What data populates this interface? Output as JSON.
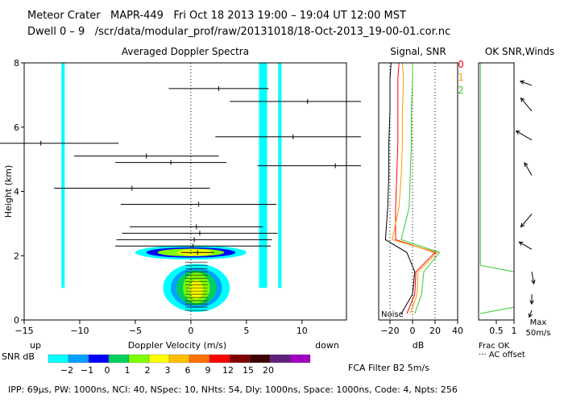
{
  "header": {
    "site": "Meteor Crater",
    "radar": "MAPR-449",
    "datetime": "Fri Oct 18 2013 19:00 – 19:04 UT 12:00 MST",
    "dwell": "Dwell   0 –   9",
    "path": "/scr/data/modular_prof/raw/20131018/18-Oct-2013_19-00-01.cor.nc"
  },
  "panels": {
    "spectra_title": "Averaged Doppler Spectra",
    "signal_title": "Signal, SNR",
    "ok_title": "OK SNR,Winds"
  },
  "legend_modes": [
    "0",
    "1",
    "2"
  ],
  "colors": {
    "mode0": "#ff0000",
    "mode1": "#ff9900",
    "mode2": "#33cc33",
    "ground_clutter": "#00ffff"
  },
  "colorbar": {
    "label": "SNR dB",
    "ticks": [
      "-2",
      "-1",
      "0",
      "1",
      "2",
      "3",
      "6",
      "9",
      "12",
      "15",
      "20"
    ],
    "colors": [
      "#00ffff",
      "#00a0ff",
      "#0000ff",
      "#00d060",
      "#80ff00",
      "#ffff00",
      "#ffc000",
      "#ff7000",
      "#ff0000",
      "#800000",
      "#400000",
      "#602080",
      "#a000c0"
    ]
  },
  "annotations": {
    "up": "up",
    "down": "down",
    "noise": "Noise",
    "frac_ok": "Frac OK",
    "ac_offset": "··· AC offset",
    "max": "Max",
    "max_value": "50m/s",
    "filter": "FCA Filter B2   5m/s"
  },
  "footer": {
    "text": "IPP: 69μs,  PW: 1000ns,  NCI: 40,  NSpec: 10, NHts: 54,  Dly: 1000ns,  Space: 1000ns,  Code: 4,  Npts: 256"
  },
  "chart_data": [
    {
      "type": "scatter",
      "name": "averaged-doppler-spectra",
      "title": "Averaged Doppler Spectra",
      "xlabel": "Doppler Velocity (m/s)",
      "ylabel": "Height (km)",
      "xlim": [
        -15,
        14
      ],
      "ylim": [
        0,
        8
      ],
      "xticks": [
        -15,
        -10,
        -5,
        0,
        5,
        10
      ],
      "yticks": [
        0,
        2,
        4,
        6,
        8
      ],
      "ground_clutter_bands": [
        {
          "x": -11.5,
          "from": 1.0,
          "to": 8.0
        },
        {
          "x": 6.5,
          "from": 1.0,
          "to": 8.0
        },
        {
          "x": 8.0,
          "from": 1.0,
          "to": 8.0
        }
      ],
      "velocity_estimates": [
        {
          "height": 7.2,
          "v": 2.5,
          "err": 4.5
        },
        {
          "height": 6.8,
          "v": 10.5,
          "err": 7.0
        },
        {
          "height": 5.7,
          "v": 9.2,
          "err": 7.0
        },
        {
          "height": 5.5,
          "v": -13.5,
          "err": 7.0
        },
        {
          "height": 5.1,
          "v": -4.0,
          "err": 6.5
        },
        {
          "height": 4.9,
          "v": -1.8,
          "err": 5.0
        },
        {
          "height": 4.8,
          "v": 13.0,
          "err": 7.0
        },
        {
          "height": 4.1,
          "v": -5.3,
          "err": 7.0
        },
        {
          "height": 3.6,
          "v": 0.7,
          "err": 7.0
        },
        {
          "height": 2.9,
          "v": 0.5,
          "err": 6.0
        },
        {
          "height": 2.7,
          "v": 0.8,
          "err": 7.0
        },
        {
          "height": 2.5,
          "v": 0.3,
          "err": 7.0
        },
        {
          "height": 2.3,
          "v": 0.2,
          "err": 7.0
        },
        {
          "height": 2.1,
          "v": 0.6,
          "err": 1.5
        }
      ]
    },
    {
      "type": "line",
      "name": "signal-snr",
      "title": "Signal, SNR",
      "xlabel": "dB",
      "xlim": [
        -30,
        40
      ],
      "ylim": [
        0,
        8
      ],
      "xticks": [
        -20,
        0,
        20,
        40
      ],
      "series": [
        {
          "name": "0",
          "color": "#ff0000",
          "height": [
            0.2,
            0.8,
            1.5,
            2.1,
            2.5,
            3.5,
            4.5,
            5.5,
            6.5,
            7.5,
            8.0
          ],
          "db": [
            -5,
            2,
            3,
            20,
            -15,
            -15,
            -14,
            -13,
            -13,
            -13,
            -12
          ]
        },
        {
          "name": "1",
          "color": "#ff9900",
          "height": [
            0.2,
            0.8,
            1.5,
            2.1,
            2.5,
            3.5,
            4.5,
            5.5,
            6.5,
            7.5,
            8.0
          ],
          "db": [
            -2,
            4,
            5,
            22,
            -18,
            -12,
            -10,
            -9,
            -9,
            -8,
            -9
          ]
        },
        {
          "name": "2",
          "color": "#33cc33",
          "height": [
            0.2,
            0.8,
            1.5,
            2.1,
            2.5,
            3.5,
            4.5,
            5.5,
            6.5,
            7.5,
            8.0
          ],
          "db": [
            2,
            8,
            10,
            24,
            -10,
            -3,
            -2,
            -1,
            -1,
            0,
            0
          ]
        },
        {
          "name": "signal",
          "color": "#000000",
          "height": [
            0.2,
            0.8,
            1.5,
            2.1,
            2.5,
            3.5,
            4.5,
            5.5,
            6.5,
            7.5,
            8.0
          ],
          "db": [
            -10,
            0,
            2,
            -5,
            -24,
            -22,
            -21,
            -21,
            -20,
            -20,
            -19
          ]
        }
      ]
    },
    {
      "type": "line",
      "name": "ok-snr-winds",
      "title": "OK SNR,Winds",
      "xlabel": "Frac OK",
      "xlim": [
        0,
        1
      ],
      "ylim": [
        0,
        8
      ],
      "xticks": [
        0.5,
        1
      ],
      "series": [
        {
          "name": "Frac OK",
          "height": [
            0.2,
            0.4,
            1.5,
            1.7,
            2.0,
            8.0
          ],
          "values": [
            0.05,
            1.0,
            1.0,
            0.05,
            0.05,
            0.05
          ]
        }
      ],
      "winds_ms": [
        {
          "height": 0.3,
          "speed": 6,
          "dir": 200
        },
        {
          "height": 0.8,
          "speed": 8,
          "dir": 180
        },
        {
          "height": 1.5,
          "speed": 10,
          "dir": 170
        },
        {
          "height": 2.2,
          "speed": 12,
          "dir": 300
        },
        {
          "height": 3.3,
          "speed": 14,
          "dir": 220
        },
        {
          "height": 4.5,
          "speed": 12,
          "dir": 330
        },
        {
          "height": 5.6,
          "speed": 15,
          "dir": 300
        },
        {
          "height": 6.5,
          "speed": 14,
          "dir": 320
        },
        {
          "height": 7.3,
          "speed": 10,
          "dir": 290
        }
      ]
    }
  ]
}
